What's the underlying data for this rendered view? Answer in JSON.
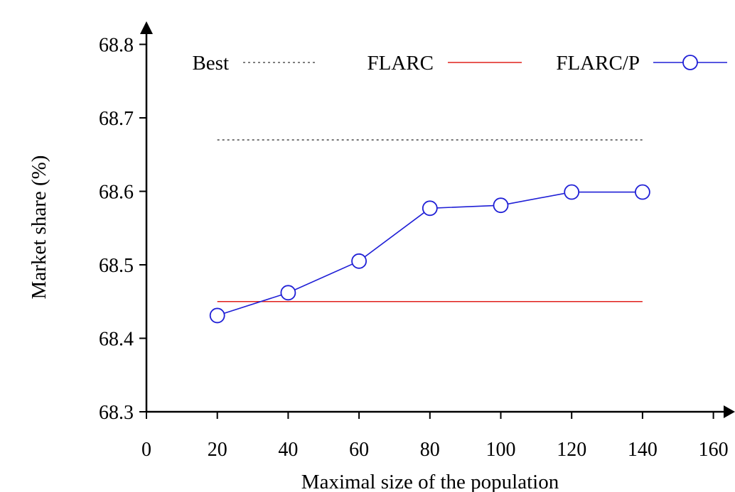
{
  "chart_data": {
    "type": "line",
    "xlabel": "Maximal size of the population",
    "ylabel": "Market share (%)",
    "xlim": [
      0,
      160
    ],
    "ylim": [
      68.3,
      68.8
    ],
    "x_ticks": [
      "0",
      "20",
      "40",
      "60",
      "80",
      "100",
      "120",
      "140",
      "160"
    ],
    "y_ticks": [
      "68.3",
      "68.4",
      "68.5",
      "68.6",
      "68.7",
      "68.8"
    ],
    "grid": false,
    "legend_position": "top",
    "series": [
      {
        "name": "Best",
        "style": "dotted",
        "color": "#555555",
        "x": [
          20,
          140
        ],
        "y": [
          68.67,
          68.67
        ]
      },
      {
        "name": "FLARC",
        "style": "solid",
        "color": "#e0201b",
        "x": [
          20,
          140
        ],
        "y": [
          68.45,
          68.45
        ]
      },
      {
        "name": "FLARC/P",
        "style": "solid",
        "marker": "circle",
        "color": "#1f1fd6",
        "x": [
          20,
          40,
          60,
          80,
          100,
          120,
          140
        ],
        "y": [
          68.431,
          68.462,
          68.505,
          68.577,
          68.581,
          68.599,
          68.599
        ]
      }
    ]
  }
}
